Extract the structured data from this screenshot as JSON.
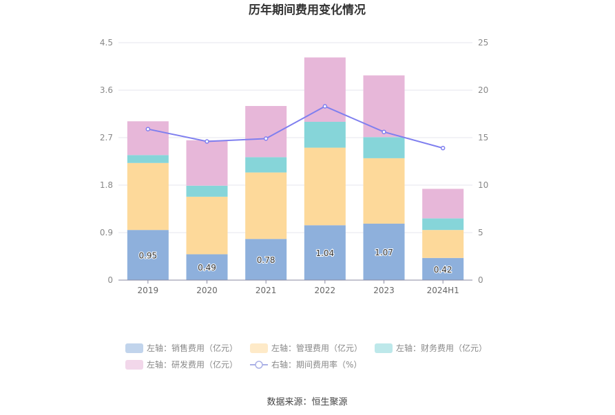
{
  "chart_data": {
    "type": "bar",
    "stacked": true,
    "title": "历年期间费用变化情况",
    "categories": [
      "2019",
      "2020",
      "2021",
      "2022",
      "2023",
      "2024H1"
    ],
    "left_axis": {
      "ticks": [
        "0",
        "0.9",
        "1.8",
        "2.7",
        "3.6",
        "4.5"
      ],
      "range": [
        0,
        4.5
      ]
    },
    "right_axis": {
      "ticks": [
        "0",
        "5",
        "10",
        "15",
        "20",
        "25"
      ],
      "range": [
        0,
        25
      ]
    },
    "series": [
      {
        "name": "左轴：销售费用（亿元）",
        "color": "#8eb0dc",
        "axis": "left",
        "values": [
          0.95,
          0.49,
          0.78,
          1.04,
          1.07,
          0.42
        ],
        "labels": [
          "0.95",
          "0.49",
          "0.78",
          "1.04",
          "1.07",
          "0.42"
        ]
      },
      {
        "name": "左轴：管理费用（亿元）",
        "color": "#fdd99a",
        "axis": "left",
        "values": [
          1.27,
          1.09,
          1.26,
          1.47,
          1.24,
          0.53
        ]
      },
      {
        "name": "左轴：财务费用（亿元）",
        "color": "#86d5d9",
        "axis": "left",
        "values": [
          0.15,
          0.21,
          0.29,
          0.49,
          0.4,
          0.22
        ]
      },
      {
        "name": "左轴：研发费用（亿元）",
        "color": "#e7b7d9",
        "axis": "left",
        "values": [
          0.64,
          0.86,
          0.97,
          1.22,
          1.17,
          0.56
        ]
      },
      {
        "name": "右轴：期间费用率（%）",
        "color": "#7f7fef",
        "axis": "right",
        "type": "line",
        "values": [
          15.9,
          14.6,
          14.9,
          18.3,
          15.6,
          13.9
        ]
      }
    ],
    "legend_position": "bottom",
    "grid": true
  },
  "footer": {
    "source": "数据来源：恒生聚源"
  }
}
